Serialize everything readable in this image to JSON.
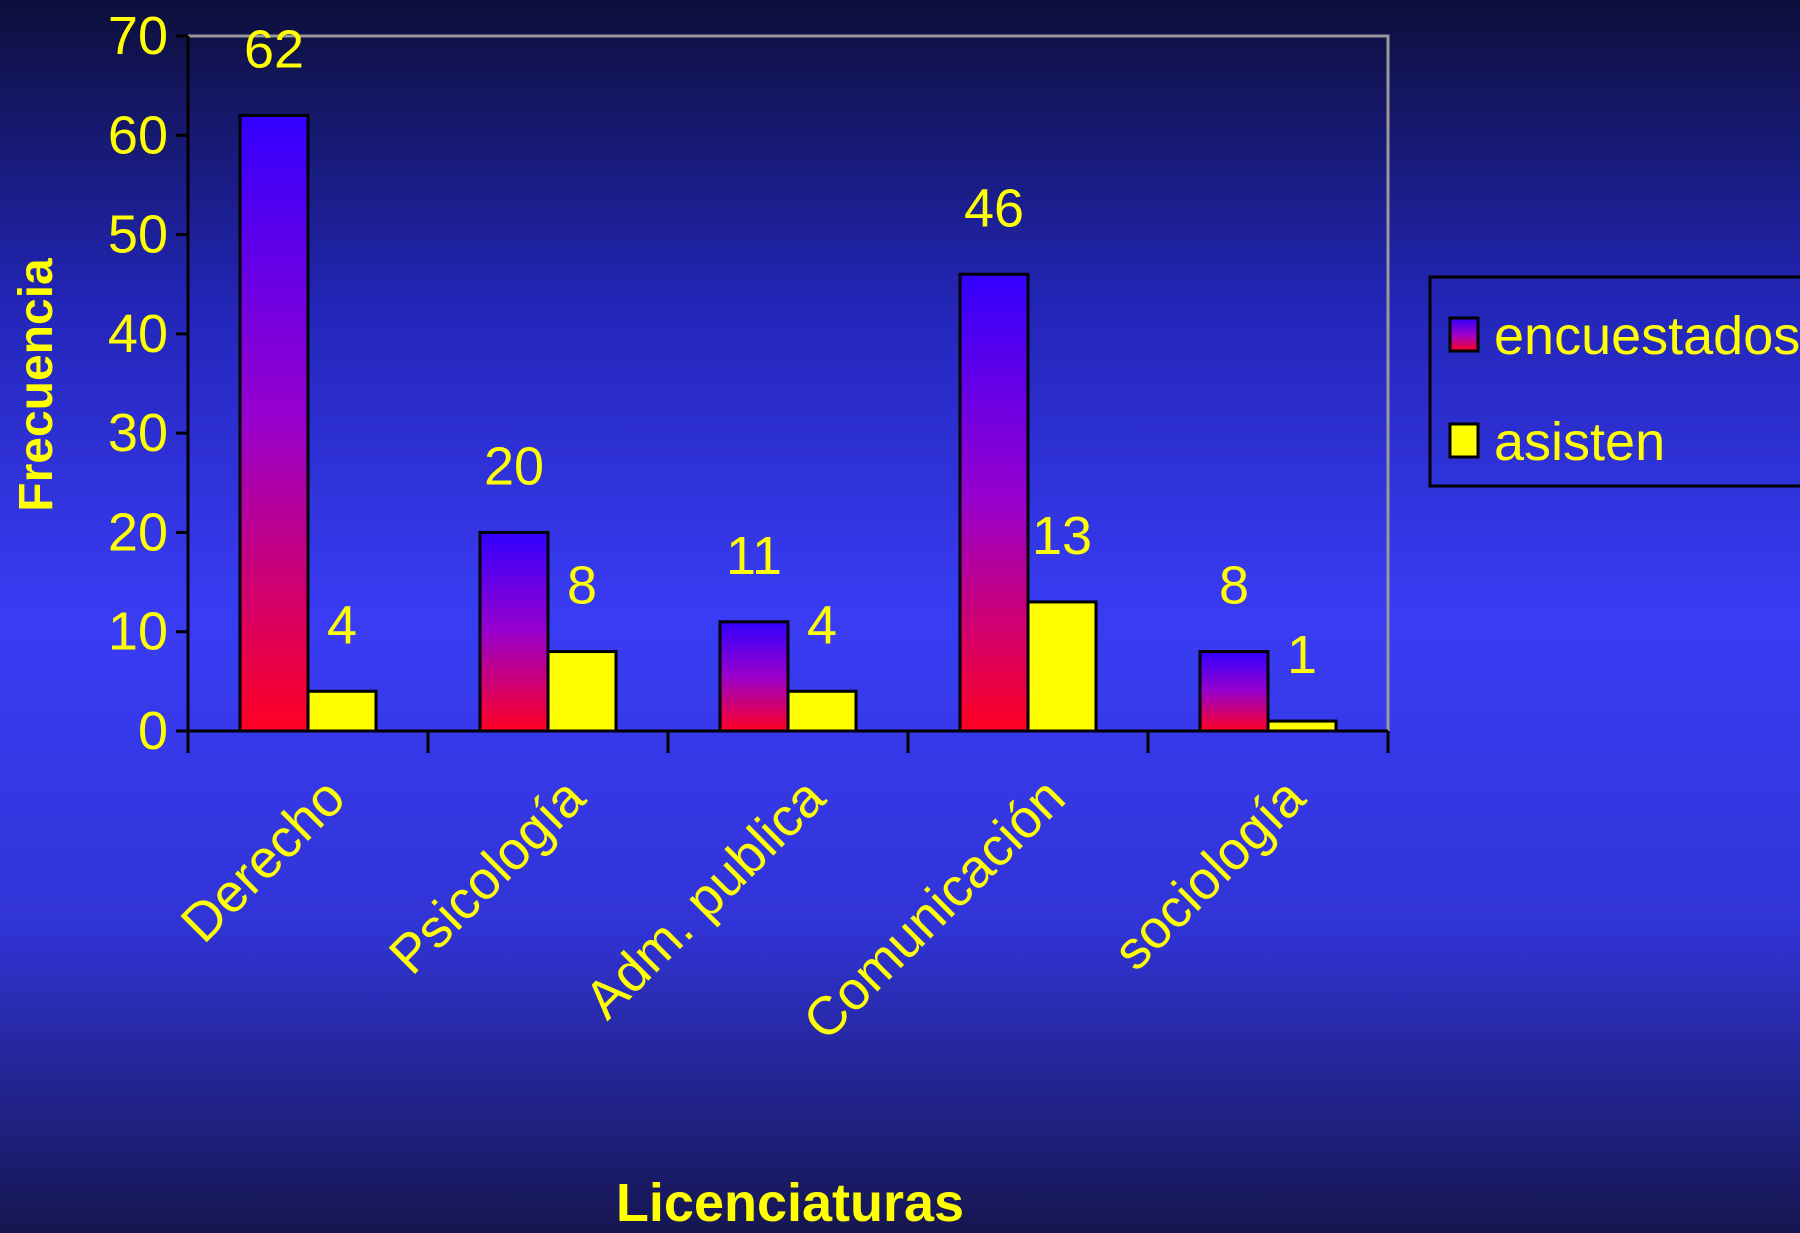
{
  "chart_data": {
    "type": "bar",
    "title": "",
    "xlabel": "Licenciaturas",
    "ylabel": "Frecuencia",
    "ylim": [
      0,
      70
    ],
    "yticks": [
      0,
      10,
      20,
      30,
      40,
      50,
      60,
      70
    ],
    "categories": [
      "Derecho",
      "Psicología",
      "Adm. publica",
      "Comunicación",
      "sociología"
    ],
    "series": [
      {
        "name": "encuestados",
        "values": [
          62,
          20,
          11,
          46,
          8
        ],
        "color_top": "#3300ff",
        "color_mid": "#9900cc",
        "color_bottom": "#ff0022"
      },
      {
        "name": "asisten",
        "values": [
          4,
          8,
          4,
          13,
          1
        ],
        "color": "#ffff00"
      }
    ],
    "data_labels": true,
    "grid": false,
    "legend_position": "right",
    "text_color": "#ffff00",
    "axis_color": "#000000",
    "plot_border_color": "#999999"
  }
}
